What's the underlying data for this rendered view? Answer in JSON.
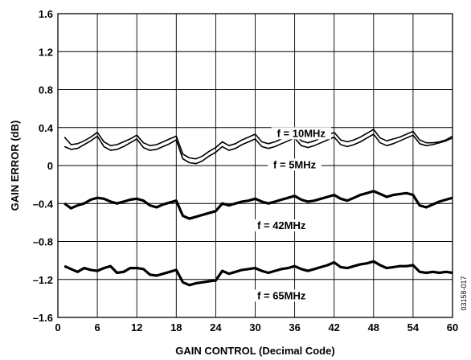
{
  "chart_data": {
    "type": "line",
    "xlabel": "GAIN CONTROL (Decimal Code)",
    "ylabel": "GAIN ERROR (dB)",
    "xlim": [
      0,
      60
    ],
    "ylim": [
      -1.6,
      1.6
    ],
    "x_ticks": [
      0,
      6,
      12,
      18,
      24,
      30,
      36,
      42,
      48,
      54,
      60
    ],
    "y_ticks": [
      1.6,
      1.2,
      0.8,
      0.4,
      0,
      -0.4,
      -0.8,
      -1.2,
      -1.6
    ],
    "x_tick_labels": [
      "0",
      "6",
      "12",
      "18",
      "24",
      "30",
      "36",
      "42",
      "48",
      "54",
      "60"
    ],
    "y_tick_labels": [
      "1.6",
      "1.2",
      "0.8",
      "0.4",
      "0",
      "–0.4",
      "–0.8",
      "–1.2",
      "–1.6"
    ],
    "grid": true,
    "figure_id": "03158-017",
    "series": [
      {
        "name": "f = 10MHz",
        "x": [
          1,
          2,
          3,
          4,
          5,
          6,
          7,
          8,
          9,
          10,
          11,
          12,
          13,
          14,
          15,
          16,
          17,
          18,
          19,
          20,
          21,
          22,
          23,
          24,
          25,
          26,
          27,
          28,
          29,
          30,
          31,
          32,
          33,
          34,
          35,
          36,
          37,
          38,
          39,
          40,
          41,
          42,
          43,
          44,
          45,
          46,
          47,
          48,
          49,
          50,
          51,
          52,
          53,
          54,
          55,
          56,
          57,
          58,
          59,
          60
        ],
        "values": [
          0.3,
          0.22,
          0.23,
          0.26,
          0.3,
          0.35,
          0.25,
          0.21,
          0.22,
          0.25,
          0.28,
          0.32,
          0.24,
          0.21,
          0.22,
          0.25,
          0.28,
          0.31,
          0.12,
          0.08,
          0.07,
          0.1,
          0.15,
          0.19,
          0.25,
          0.21,
          0.23,
          0.27,
          0.3,
          0.33,
          0.25,
          0.23,
          0.25,
          0.28,
          0.31,
          0.34,
          0.26,
          0.24,
          0.26,
          0.29,
          0.32,
          0.35,
          0.27,
          0.25,
          0.27,
          0.3,
          0.34,
          0.38,
          0.29,
          0.26,
          0.28,
          0.3,
          0.33,
          0.36,
          0.27,
          0.24,
          0.24,
          0.25,
          0.27,
          0.31
        ],
        "label_at": [
          37,
          0.31
        ]
      },
      {
        "name": "f = 5MHz",
        "x": [
          1,
          2,
          3,
          4,
          5,
          6,
          7,
          8,
          9,
          10,
          11,
          12,
          13,
          14,
          15,
          16,
          17,
          18,
          19,
          20,
          21,
          22,
          23,
          24,
          25,
          26,
          27,
          28,
          29,
          30,
          31,
          32,
          33,
          34,
          35,
          36,
          37,
          38,
          39,
          40,
          41,
          42,
          43,
          44,
          45,
          46,
          47,
          48,
          49,
          50,
          51,
          52,
          53,
          54,
          55,
          56,
          57,
          58,
          59,
          60
        ],
        "values": [
          0.2,
          0.17,
          0.18,
          0.22,
          0.26,
          0.31,
          0.2,
          0.16,
          0.17,
          0.2,
          0.24,
          0.28,
          0.19,
          0.16,
          0.17,
          0.2,
          0.23,
          0.27,
          0.07,
          0.03,
          0.02,
          0.05,
          0.1,
          0.14,
          0.2,
          0.16,
          0.18,
          0.22,
          0.25,
          0.28,
          0.2,
          0.18,
          0.2,
          0.23,
          0.26,
          0.29,
          0.21,
          0.19,
          0.21,
          0.24,
          0.27,
          0.3,
          0.22,
          0.2,
          0.22,
          0.25,
          0.29,
          0.33,
          0.24,
          0.21,
          0.23,
          0.26,
          0.29,
          0.32,
          0.23,
          0.21,
          0.22,
          0.24,
          0.26,
          0.29
        ],
        "label_at": [
          36,
          -0.02
        ]
      },
      {
        "name": "f = 42MHz",
        "x": [
          1,
          2,
          3,
          4,
          5,
          6,
          7,
          8,
          9,
          10,
          11,
          12,
          13,
          14,
          15,
          16,
          17,
          18,
          19,
          20,
          21,
          22,
          23,
          24,
          25,
          26,
          27,
          28,
          29,
          30,
          31,
          32,
          33,
          34,
          35,
          36,
          37,
          38,
          39,
          40,
          41,
          42,
          43,
          44,
          45,
          46,
          47,
          48,
          49,
          50,
          51,
          52,
          53,
          54,
          55,
          56,
          57,
          58,
          59,
          60
        ],
        "values": [
          -0.4,
          -0.45,
          -0.42,
          -0.4,
          -0.36,
          -0.34,
          -0.35,
          -0.38,
          -0.4,
          -0.38,
          -0.36,
          -0.35,
          -0.37,
          -0.42,
          -0.44,
          -0.41,
          -0.39,
          -0.37,
          -0.53,
          -0.56,
          -0.54,
          -0.52,
          -0.5,
          -0.48,
          -0.4,
          -0.42,
          -0.4,
          -0.38,
          -0.37,
          -0.35,
          -0.38,
          -0.4,
          -0.38,
          -0.36,
          -0.34,
          -0.32,
          -0.36,
          -0.38,
          -0.37,
          -0.35,
          -0.33,
          -0.31,
          -0.35,
          -0.37,
          -0.34,
          -0.31,
          -0.29,
          -0.27,
          -0.3,
          -0.33,
          -0.31,
          -0.3,
          -0.29,
          -0.31,
          -0.42,
          -0.44,
          -0.41,
          -0.38,
          -0.36,
          -0.34
        ],
        "label_at": [
          34,
          -0.66
        ]
      },
      {
        "name": "f = 65MHz",
        "x": [
          1,
          2,
          3,
          4,
          5,
          6,
          7,
          8,
          9,
          10,
          11,
          12,
          13,
          14,
          15,
          16,
          17,
          18,
          19,
          20,
          21,
          22,
          23,
          24,
          25,
          26,
          27,
          28,
          29,
          30,
          31,
          32,
          33,
          34,
          35,
          36,
          37,
          38,
          39,
          40,
          41,
          42,
          43,
          44,
          45,
          46,
          47,
          48,
          49,
          50,
          51,
          52,
          53,
          54,
          55,
          56,
          57,
          58,
          59,
          60
        ],
        "values": [
          -1.06,
          -1.09,
          -1.12,
          -1.08,
          -1.1,
          -1.11,
          -1.08,
          -1.06,
          -1.13,
          -1.12,
          -1.08,
          -1.08,
          -1.09,
          -1.15,
          -1.16,
          -1.14,
          -1.12,
          -1.1,
          -1.23,
          -1.26,
          -1.24,
          -1.23,
          -1.22,
          -1.21,
          -1.11,
          -1.14,
          -1.12,
          -1.1,
          -1.09,
          -1.08,
          -1.11,
          -1.13,
          -1.11,
          -1.09,
          -1.08,
          -1.06,
          -1.09,
          -1.11,
          -1.09,
          -1.07,
          -1.05,
          -1.02,
          -1.07,
          -1.08,
          -1.06,
          -1.04,
          -1.03,
          -1.01,
          -1.05,
          -1.08,
          -1.07,
          -1.06,
          -1.06,
          -1.05,
          -1.12,
          -1.13,
          -1.12,
          -1.13,
          -1.12,
          -1.13
        ],
        "label_at": [
          34,
          -1.4
        ]
      }
    ]
  }
}
